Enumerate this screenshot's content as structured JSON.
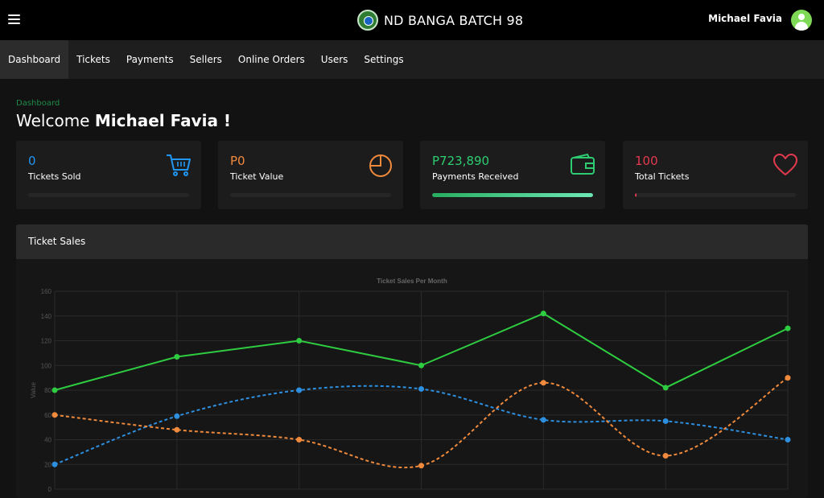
{
  "header": {
    "app_title": "ND BANGA BATCH 98",
    "user_name": "Michael Favia"
  },
  "nav": {
    "items": [
      "Dashboard",
      "Tickets",
      "Payments",
      "Sellers",
      "Online Orders",
      "Users",
      "Settings"
    ],
    "active": "Dashboard"
  },
  "breadcrumb": "Dashboard",
  "welcome": {
    "prefix": "Welcome",
    "name": "Michael Favia !"
  },
  "cards": [
    {
      "value": "0",
      "label": "Tickets Sold",
      "color": "#2196f3",
      "icon": "cart-icon",
      "progress": 0
    },
    {
      "value": "P0",
      "label": "Ticket Value",
      "color": "#f08a3c",
      "icon": "pie-chart-icon",
      "progress": 0
    },
    {
      "value": "P723,890",
      "label": "Payments Received",
      "color": "#2ecc71",
      "icon": "wallet-icon",
      "progress": 1
    },
    {
      "value": "100",
      "label": "Total Tickets",
      "color": "#e53950",
      "icon": "heart-icon",
      "progress": 0.01
    }
  ],
  "panel": {
    "title": "Ticket Sales"
  },
  "chart_data": {
    "type": "line",
    "title": "Ticket Sales Per Month",
    "ylabel": "Value",
    "xlabel": "",
    "ylim": [
      0,
      160
    ],
    "yticks": [
      0,
      20,
      40,
      60,
      80,
      100,
      120,
      140,
      160
    ],
    "grid": true,
    "series": [
      {
        "color": "#2ecc40",
        "dashed": false,
        "values": [
          80,
          107,
          120,
          100,
          142,
          82,
          130
        ]
      },
      {
        "color": "#2d8fe0",
        "dashed": true,
        "values": [
          20,
          59,
          80,
          81,
          56,
          55,
          40
        ]
      },
      {
        "color": "#f08a3c",
        "dashed": true,
        "values": [
          60,
          48,
          40,
          19,
          86,
          27,
          90
        ]
      }
    ]
  }
}
